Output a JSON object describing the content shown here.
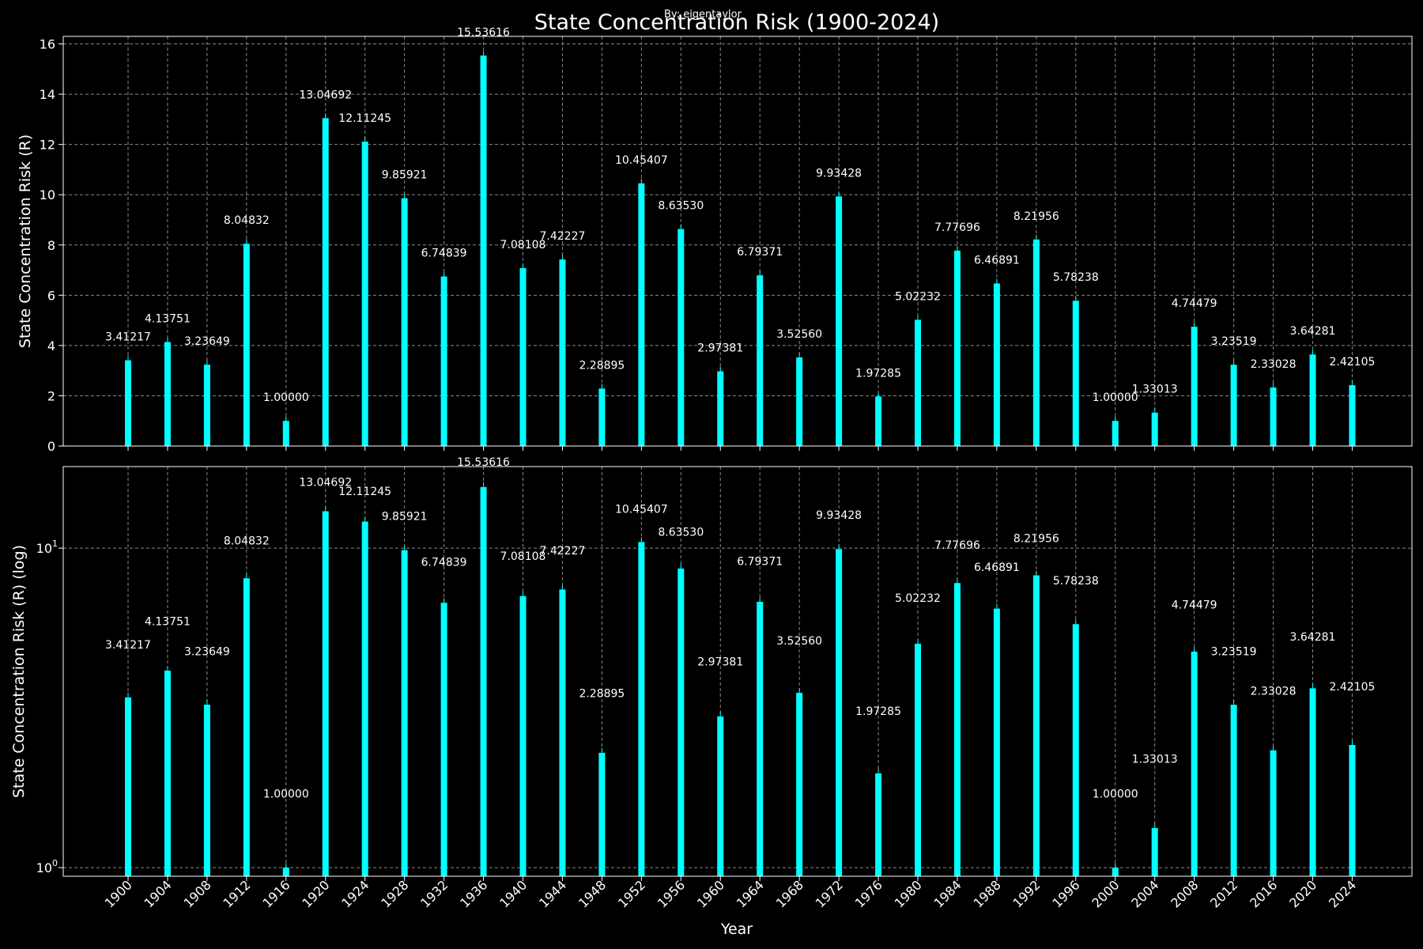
{
  "figure": {
    "title": "State Concentration Risk (1900-2024)",
    "credit": "By: eigentaylor"
  },
  "colors": {
    "background": "#000000",
    "bar": "#00ffff",
    "text": "#ffffff",
    "grid": "#888888",
    "axes": "#ffffff"
  },
  "chart_data": [
    {
      "type": "bar",
      "title": "State Concentration Risk (1900-2024)",
      "xlabel": "",
      "ylabel": "State Concentration Risk (R)",
      "yscale": "linear",
      "ylim": [
        0,
        16.3
      ],
      "yticks": [
        0,
        2,
        4,
        6,
        8,
        10,
        12,
        14,
        16
      ],
      "ytick_labels": [
        "0",
        "2",
        "4",
        "6",
        "8",
        "10",
        "12",
        "14",
        "16"
      ],
      "grid": true,
      "categories": [
        "1900",
        "1904",
        "1908",
        "1912",
        "1916",
        "1920",
        "1924",
        "1928",
        "1932",
        "1936",
        "1940",
        "1944",
        "1948",
        "1952",
        "1956",
        "1960",
        "1964",
        "1968",
        "1972",
        "1976",
        "1980",
        "1984",
        "1988",
        "1992",
        "1996",
        "2000",
        "2004",
        "2008",
        "2012",
        "2016",
        "2020",
        "2024"
      ],
      "values": [
        3.41217,
        4.13751,
        3.23649,
        8.04832,
        1.0,
        13.04692,
        12.11245,
        9.85921,
        6.74839,
        15.53616,
        7.08108,
        7.42227,
        2.28895,
        10.45407,
        8.6353,
        2.97381,
        6.79371,
        3.5256,
        9.93428,
        1.97285,
        5.02232,
        7.77696,
        6.46891,
        8.21956,
        5.78238,
        1.0,
        1.33013,
        4.74479,
        3.23519,
        2.33028,
        3.64281,
        2.42105
      ],
      "data_labels": [
        "3.41217",
        "4.13751",
        "3.23649",
        "8.04832",
        "1.00000",
        "13.04692",
        "12.11245",
        "9.85921",
        "6.74839",
        "15.53616",
        "7.08108",
        "7.42227",
        "2.28895",
        "10.45407",
        "8.63530",
        "2.97381",
        "6.79371",
        "3.52560",
        "9.93428",
        "1.97285",
        "5.02232",
        "7.77696",
        "6.46891",
        "8.21956",
        "5.78238",
        "1.00000",
        "1.33013",
        "4.74479",
        "3.23519",
        "2.33028",
        "3.64281",
        "2.42105"
      ],
      "show_xtick_labels": false
    },
    {
      "type": "bar",
      "title": "",
      "xlabel": "Year",
      "ylabel": "State Concentration Risk (R) (log)",
      "yscale": "log",
      "ylim": [
        0.94,
        18.0
      ],
      "yticks": [
        1,
        10
      ],
      "ytick_labels": [
        {
          "base": "10",
          "exp": "0"
        },
        {
          "base": "10",
          "exp": "1"
        }
      ],
      "grid": true,
      "categories": [
        "1900",
        "1904",
        "1908",
        "1912",
        "1916",
        "1920",
        "1924",
        "1928",
        "1932",
        "1936",
        "1940",
        "1944",
        "1948",
        "1952",
        "1956",
        "1960",
        "1964",
        "1968",
        "1972",
        "1976",
        "1980",
        "1984",
        "1988",
        "1992",
        "1996",
        "2000",
        "2004",
        "2008",
        "2012",
        "2016",
        "2020",
        "2024"
      ],
      "values": [
        3.41217,
        4.13751,
        3.23649,
        8.04832,
        1.0,
        13.04692,
        12.11245,
        9.85921,
        6.74839,
        15.53616,
        7.08108,
        7.42227,
        2.28895,
        10.45407,
        8.6353,
        2.97381,
        6.79371,
        3.5256,
        9.93428,
        1.97285,
        5.02232,
        7.77696,
        6.46891,
        8.21956,
        5.78238,
        1.0,
        1.33013,
        4.74479,
        3.23519,
        2.33028,
        3.64281,
        2.42105
      ],
      "data_labels": [
        "3.41217",
        "4.13751",
        "3.23649",
        "8.04832",
        "1.00000",
        "13.04692",
        "12.11245",
        "9.85921",
        "6.74839",
        "15.53616",
        "7.08108",
        "7.42227",
        "2.28895",
        "10.45407",
        "8.63530",
        "2.97381",
        "6.79371",
        "3.52560",
        "9.93428",
        "1.97285",
        "5.02232",
        "7.77696",
        "6.46891",
        "8.21956",
        "5.78238",
        "1.00000",
        "1.33013",
        "4.74479",
        "3.23519",
        "2.33028",
        "3.64281",
        "2.42105"
      ],
      "show_xtick_labels": true
    }
  ]
}
